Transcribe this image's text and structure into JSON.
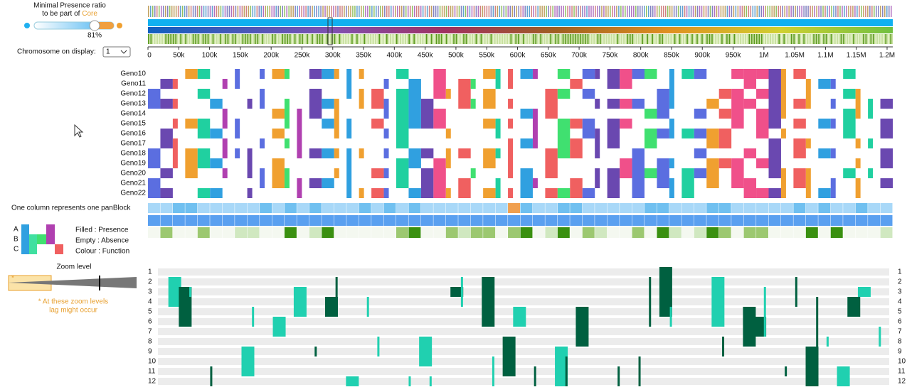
{
  "presence_slider": {
    "title_line1": "Minimal Presence ratio",
    "title_line2": "to be part of",
    "title_highlight": "Core",
    "value_label": "81%"
  },
  "chromosome": {
    "label": "Chromosome on display:",
    "selected": "1"
  },
  "axis_ticks": [
    "0",
    "50k",
    "100k",
    "150k",
    "200k",
    "250k",
    "300k",
    "350k",
    "400k",
    "450k",
    "500k",
    "550k",
    "600k",
    "650k",
    "700k",
    "750k",
    "800k",
    "850k",
    "900k",
    "950k",
    "1M",
    "1.05M",
    "1.1M",
    "1.15M",
    "1.2M"
  ],
  "genomes": [
    "Geno10",
    "Geno11",
    "Geno12",
    "Geno13",
    "Geno14",
    "Geno15",
    "Geno16",
    "Geno17",
    "Geno18",
    "Geno19",
    "Geno20",
    "Geno21",
    "Geno22"
  ],
  "panblock_note": "One column represents one panBlock",
  "legend": {
    "rows": [
      "A",
      "B",
      "C"
    ],
    "lines": [
      "Filled : Presence",
      "Empty : Absence",
      "Colour : Function"
    ]
  },
  "zoom": {
    "title": "Zoom level",
    "marker": "*",
    "note_line1": "* At these zoom levels",
    "note_line2": "lag might occur"
  },
  "track_rows": [
    "1",
    "2",
    "3",
    "4",
    "5",
    "6",
    "7",
    "8",
    "9",
    "10",
    "11",
    "12"
  ]
}
